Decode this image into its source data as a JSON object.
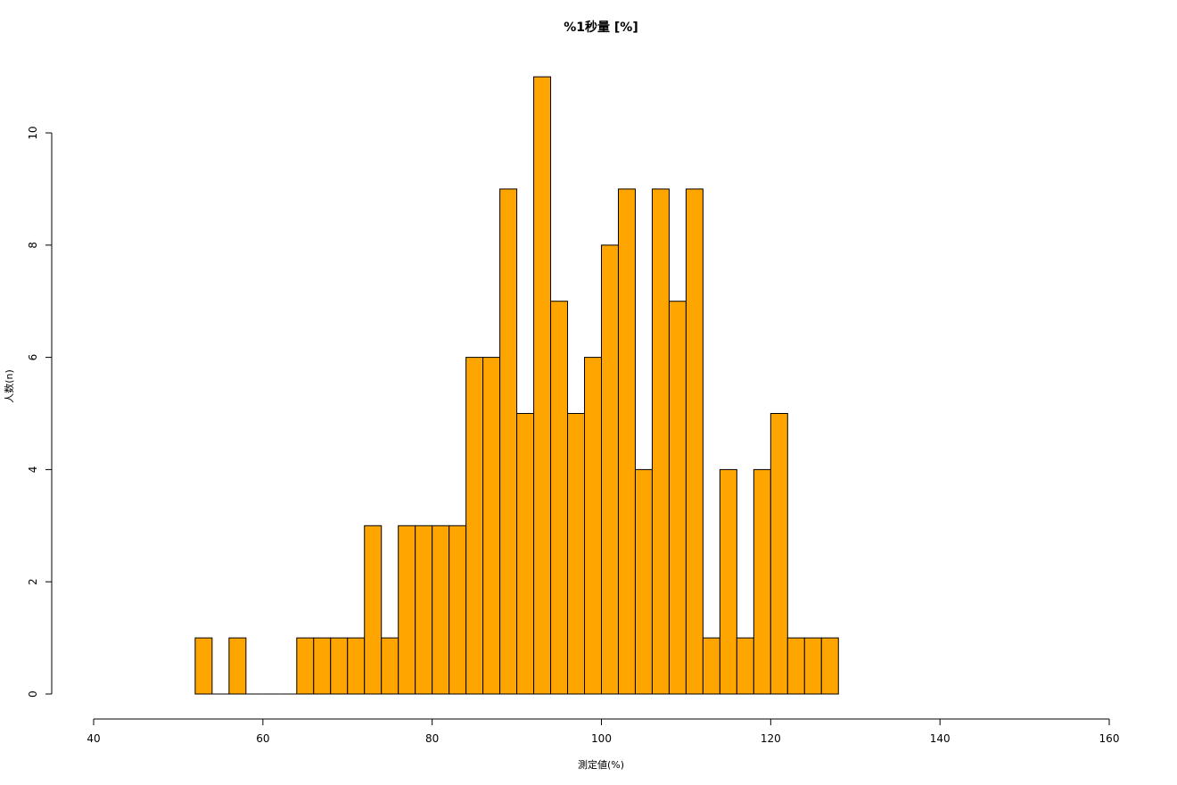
{
  "chart_data": {
    "type": "bar",
    "title": "%1秒量 [%]",
    "xlabel": "測定値(%)",
    "ylabel": "人数(n)",
    "xlim": [
      40,
      160
    ],
    "ylim": [
      0,
      11
    ],
    "x_ticks": [
      40,
      60,
      80,
      100,
      120,
      140,
      160
    ],
    "y_ticks": [
      0,
      2,
      4,
      6,
      8,
      10
    ],
    "bin_width": 2,
    "bin_starts": [
      52,
      54,
      56,
      58,
      60,
      62,
      64,
      66,
      68,
      70,
      72,
      74,
      76,
      78,
      80,
      82,
      84,
      86,
      88,
      90,
      92,
      94,
      96,
      98,
      100,
      102,
      104,
      106,
      108,
      110,
      112,
      114,
      116,
      118,
      120,
      122,
      124,
      126
    ],
    "values": [
      1,
      0,
      1,
      0,
      0,
      0,
      1,
      1,
      1,
      1,
      3,
      1,
      3,
      3,
      3,
      3,
      6,
      6,
      9,
      5,
      11,
      7,
      5,
      6,
      8,
      9,
      4,
      9,
      7,
      9,
      1,
      4,
      1,
      4,
      5,
      1,
      1,
      1
    ],
    "bar_color": "#FFA500",
    "bar_edge_color": "#000000",
    "grid": false,
    "legend": "none"
  }
}
